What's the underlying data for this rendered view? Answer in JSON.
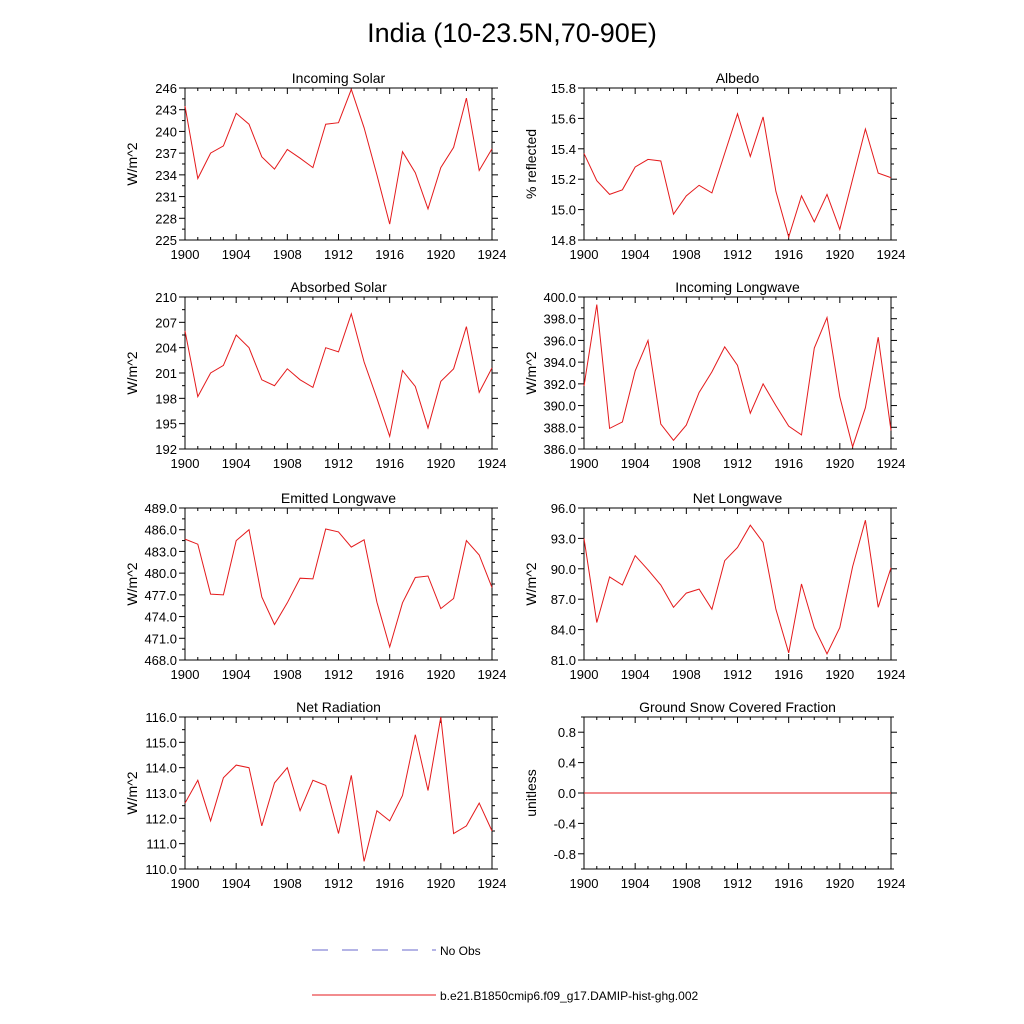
{
  "figure_title": "India (10-23.5N,70-90E)",
  "colors": {
    "model_line": "#e41a1c",
    "obs_line": "#6a6acd",
    "axis": "#000000"
  },
  "legend": {
    "obs_label": "No Obs",
    "model_label": "b.e21.B1850cmip6.f09_g17.DAMIP-hist-ghg.002"
  },
  "chart_data": [
    {
      "type": "line",
      "title": "Incoming Solar",
      "ylabel": "W/m^2",
      "xlabel": "",
      "xlim": [
        1900,
        1924
      ],
      "ylim": [
        225,
        246
      ],
      "yticks": [
        "225",
        "228",
        "231",
        "234",
        "237",
        "240",
        "243",
        "246"
      ],
      "xticks": [
        "1900",
        "1904",
        "1908",
        "1912",
        "1916",
        "1920",
        "1924"
      ],
      "series": [
        {
          "x": [
            1900,
            1901,
            1902,
            1903,
            1904,
            1905,
            1906,
            1907,
            1908,
            1909,
            1910,
            1911,
            1912,
            1913,
            1914,
            1915,
            1916,
            1917,
            1918,
            1919,
            1920,
            1921,
            1922,
            1923,
            1924
          ],
          "values": [
            243.5,
            233.5,
            237.0,
            238.0,
            242.5,
            241.0,
            236.5,
            234.8,
            237.5,
            236.3,
            235.0,
            241.0,
            241.2,
            245.8,
            240.5,
            234.0,
            227.2,
            237.2,
            234.3,
            229.3,
            235.0,
            237.8,
            244.6,
            234.6,
            237.6
          ]
        }
      ]
    },
    {
      "type": "line",
      "title": "Albedo",
      "ylabel": "% reflected",
      "xlabel": "",
      "xlim": [
        1900,
        1924
      ],
      "ylim": [
        14.8,
        15.8
      ],
      "yticks": [
        "14.8",
        "15.0",
        "15.2",
        "15.4",
        "15.6",
        "15.8"
      ],
      "xticks": [
        "1900",
        "1904",
        "1908",
        "1912",
        "1916",
        "1920",
        "1924"
      ],
      "series": [
        {
          "x": [
            1900,
            1901,
            1902,
            1903,
            1904,
            1905,
            1906,
            1907,
            1908,
            1909,
            1910,
            1911,
            1912,
            1913,
            1914,
            1915,
            1916,
            1917,
            1918,
            1919,
            1920,
            1921,
            1922,
            1923,
            1924
          ],
          "values": [
            15.37,
            15.19,
            15.1,
            15.13,
            15.28,
            15.33,
            15.32,
            14.97,
            15.09,
            15.16,
            15.11,
            15.37,
            15.63,
            15.35,
            15.61,
            15.12,
            14.82,
            15.09,
            14.92,
            15.1,
            14.87,
            15.2,
            15.53,
            15.24,
            15.21
          ]
        }
      ]
    },
    {
      "type": "line",
      "title": "Absorbed Solar",
      "ylabel": "W/m^2",
      "xlabel": "",
      "xlim": [
        1900,
        1924
      ],
      "ylim": [
        192,
        210
      ],
      "yticks": [
        "192",
        "195",
        "198",
        "201",
        "204",
        "207",
        "210"
      ],
      "xticks": [
        "1900",
        "1904",
        "1908",
        "1912",
        "1916",
        "1920",
        "1924"
      ],
      "series": [
        {
          "x": [
            1900,
            1901,
            1902,
            1903,
            1904,
            1905,
            1906,
            1907,
            1908,
            1909,
            1910,
            1911,
            1912,
            1913,
            1914,
            1915,
            1916,
            1917,
            1918,
            1919,
            1920,
            1921,
            1922,
            1923,
            1924
          ],
          "values": [
            206.0,
            198.2,
            201.0,
            201.9,
            205.5,
            204.0,
            200.2,
            199.5,
            201.5,
            200.2,
            199.3,
            204.0,
            203.5,
            208.0,
            202.3,
            198.0,
            193.5,
            201.3,
            199.4,
            194.5,
            200.0,
            201.5,
            206.5,
            198.7,
            201.6
          ]
        }
      ]
    },
    {
      "type": "line",
      "title": "Incoming Longwave",
      "ylabel": "W/m^2",
      "xlabel": "",
      "xlim": [
        1900,
        1924
      ],
      "ylim": [
        386.0,
        400.0
      ],
      "yticks": [
        "386.0",
        "388.0",
        "390.0",
        "392.0",
        "394.0",
        "396.0",
        "398.0",
        "400.0"
      ],
      "xticks": [
        "1900",
        "1904",
        "1908",
        "1912",
        "1916",
        "1920",
        "1924"
      ],
      "series": [
        {
          "x": [
            1900,
            1901,
            1902,
            1903,
            1904,
            1905,
            1906,
            1907,
            1908,
            1909,
            1910,
            1911,
            1912,
            1913,
            1914,
            1915,
            1916,
            1917,
            1918,
            1919,
            1920,
            1921,
            1922,
            1923,
            1924
          ],
          "values": [
            391.8,
            399.3,
            387.9,
            388.5,
            393.2,
            396.0,
            388.3,
            386.8,
            388.2,
            391.2,
            393.1,
            395.4,
            393.7,
            389.3,
            392.0,
            390.0,
            388.1,
            387.3,
            395.3,
            398.1,
            390.8,
            386.2,
            389.8,
            396.3,
            387.7
          ]
        }
      ]
    },
    {
      "type": "line",
      "title": "Emitted Longwave",
      "ylabel": "W/m^2",
      "xlabel": "",
      "xlim": [
        1900,
        1924
      ],
      "ylim": [
        468.0,
        489.0
      ],
      "yticks": [
        "468.0",
        "471.0",
        "474.0",
        "477.0",
        "480.0",
        "483.0",
        "486.0",
        "489.0"
      ],
      "xticks": [
        "1900",
        "1904",
        "1908",
        "1912",
        "1916",
        "1920",
        "1924"
      ],
      "series": [
        {
          "x": [
            1900,
            1901,
            1902,
            1903,
            1904,
            1905,
            1906,
            1907,
            1908,
            1909,
            1910,
            1911,
            1912,
            1913,
            1914,
            1915,
            1916,
            1917,
            1918,
            1919,
            1920,
            1921,
            1922,
            1923,
            1924
          ],
          "values": [
            484.7,
            484.0,
            477.1,
            477.0,
            484.5,
            486.0,
            476.7,
            472.9,
            475.9,
            479.3,
            479.2,
            486.1,
            485.7,
            483.6,
            484.6,
            476.0,
            469.8,
            475.9,
            479.4,
            479.6,
            475.1,
            476.5,
            484.5,
            482.5,
            478.0
          ]
        }
      ]
    },
    {
      "type": "line",
      "title": "Net Longwave",
      "ylabel": "W/m^2",
      "xlabel": "",
      "xlim": [
        1900,
        1924
      ],
      "ylim": [
        81.0,
        96.0
      ],
      "yticks": [
        "81.0",
        "84.0",
        "87.0",
        "90.0",
        "93.0",
        "96.0"
      ],
      "xticks": [
        "1900",
        "1904",
        "1908",
        "1912",
        "1916",
        "1920",
        "1924"
      ],
      "series": [
        {
          "x": [
            1900,
            1901,
            1902,
            1903,
            1904,
            1905,
            1906,
            1907,
            1908,
            1909,
            1910,
            1911,
            1912,
            1913,
            1914,
            1915,
            1916,
            1917,
            1918,
            1919,
            1920,
            1921,
            1922,
            1923,
            1924
          ],
          "values": [
            93.0,
            84.7,
            89.2,
            88.4,
            91.3,
            89.9,
            88.4,
            86.2,
            87.6,
            88.0,
            86.0,
            90.8,
            92.1,
            94.3,
            92.6,
            86.0,
            81.7,
            88.5,
            84.2,
            81.6,
            84.2,
            90.2,
            94.8,
            86.2,
            90.1
          ]
        }
      ]
    },
    {
      "type": "line",
      "title": "Net Radiation",
      "ylabel": "W/m^2",
      "xlabel": "",
      "xlim": [
        1900,
        1924
      ],
      "ylim": [
        110.0,
        116.0
      ],
      "yticks": [
        "110.0",
        "111.0",
        "112.0",
        "113.0",
        "114.0",
        "115.0",
        "116.0"
      ],
      "xticks": [
        "1900",
        "1904",
        "1908",
        "1912",
        "1916",
        "1920",
        "1924"
      ],
      "series": [
        {
          "x": [
            1900,
            1901,
            1902,
            1903,
            1904,
            1905,
            1906,
            1907,
            1908,
            1909,
            1910,
            1911,
            1912,
            1913,
            1914,
            1915,
            1916,
            1917,
            1918,
            1919,
            1920,
            1921,
            1922,
            1923,
            1924
          ],
          "values": [
            112.6,
            113.5,
            111.9,
            113.6,
            114.1,
            114.0,
            111.7,
            113.4,
            114.0,
            112.3,
            113.5,
            113.3,
            111.4,
            113.7,
            110.3,
            112.3,
            111.9,
            112.9,
            115.3,
            113.1,
            116.0,
            111.4,
            111.7,
            112.6,
            111.5
          ]
        }
      ]
    },
    {
      "type": "line",
      "title": "Ground Snow Covered Fraction",
      "ylabel": "unitless",
      "xlabel": "",
      "xlim": [
        1900,
        1924
      ],
      "ylim": [
        -1.0,
        1.0
      ],
      "yticks": [
        "-0.8",
        "-0.4",
        "0.0",
        "0.4",
        "0.8"
      ],
      "ytick_values": [
        -0.8,
        -0.4,
        0.0,
        0.4,
        0.8
      ],
      "xticks": [
        "1900",
        "1904",
        "1908",
        "1912",
        "1916",
        "1920",
        "1924"
      ],
      "series": [
        {
          "x": [
            1900,
            1924
          ],
          "values": [
            0.0,
            0.0
          ]
        }
      ]
    }
  ]
}
